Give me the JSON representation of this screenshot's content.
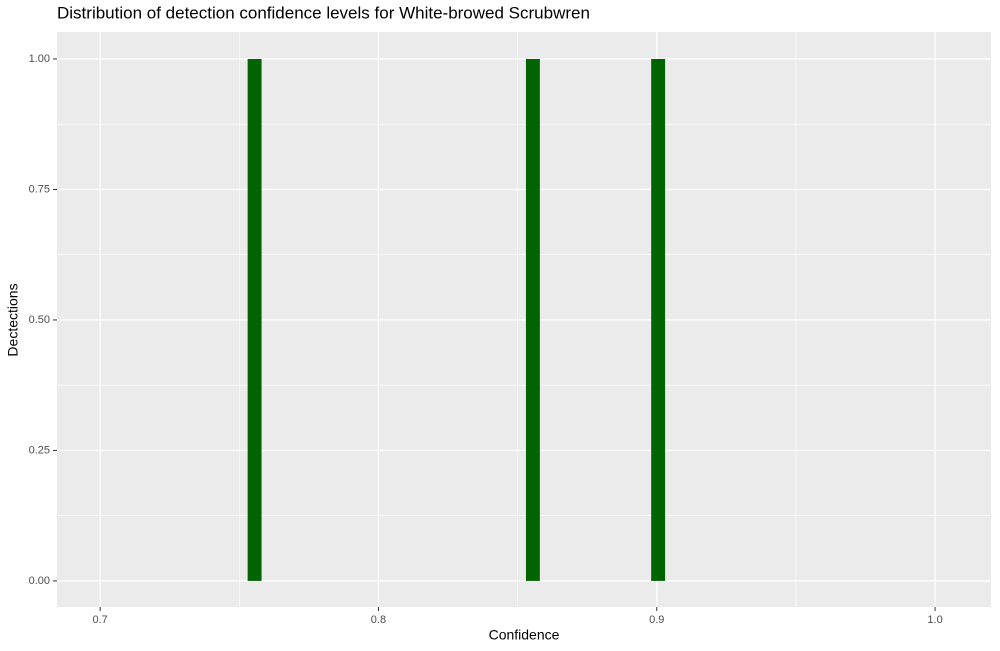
{
  "chart_data": {
    "type": "histogram",
    "title": "Distribution of detection confidence levels for White-browed Scrubwren",
    "x_label": "Confidence",
    "y_label": "Dectections",
    "bins": [
      0.753,
      0.758,
      0.763,
      0.768,
      0.773,
      0.778,
      0.783,
      0.788,
      0.793,
      0.798,
      0.803,
      0.808,
      0.813,
      0.818,
      0.823,
      0.828,
      0.833,
      0.838,
      0.843,
      0.848,
      0.853,
      0.858,
      0.863,
      0.868,
      0.873,
      0.878,
      0.883,
      0.888,
      0.893,
      0.898,
      0.903
    ],
    "values": [
      1,
      0,
      0,
      0,
      0,
      0,
      0,
      0,
      0,
      0,
      0,
      0,
      0,
      0,
      0,
      0,
      0,
      0,
      0,
      0,
      1,
      0,
      0,
      0,
      0,
      0,
      0,
      0,
      0,
      1
    ],
    "color": "#006400",
    "xlim": [
      0.6845,
      1.0201
    ],
    "xticks": [
      0.7,
      0.8,
      0.9,
      {
        "value": 1,
        "label": "1.0"
      }
    ],
    "ylim": [
      -0.05,
      1.0517
    ],
    "yticks": [
      {
        "value": 0,
        "label": "0.00"
      },
      {
        "value": 0.25,
        "label": "0.25"
      },
      {
        "value": 0.5,
        "label": "0.50"
      },
      {
        "value": 0.75,
        "label": "0.75"
      },
      {
        "value": 1,
        "label": "1.00"
      }
    ],
    "grid": true
  }
}
